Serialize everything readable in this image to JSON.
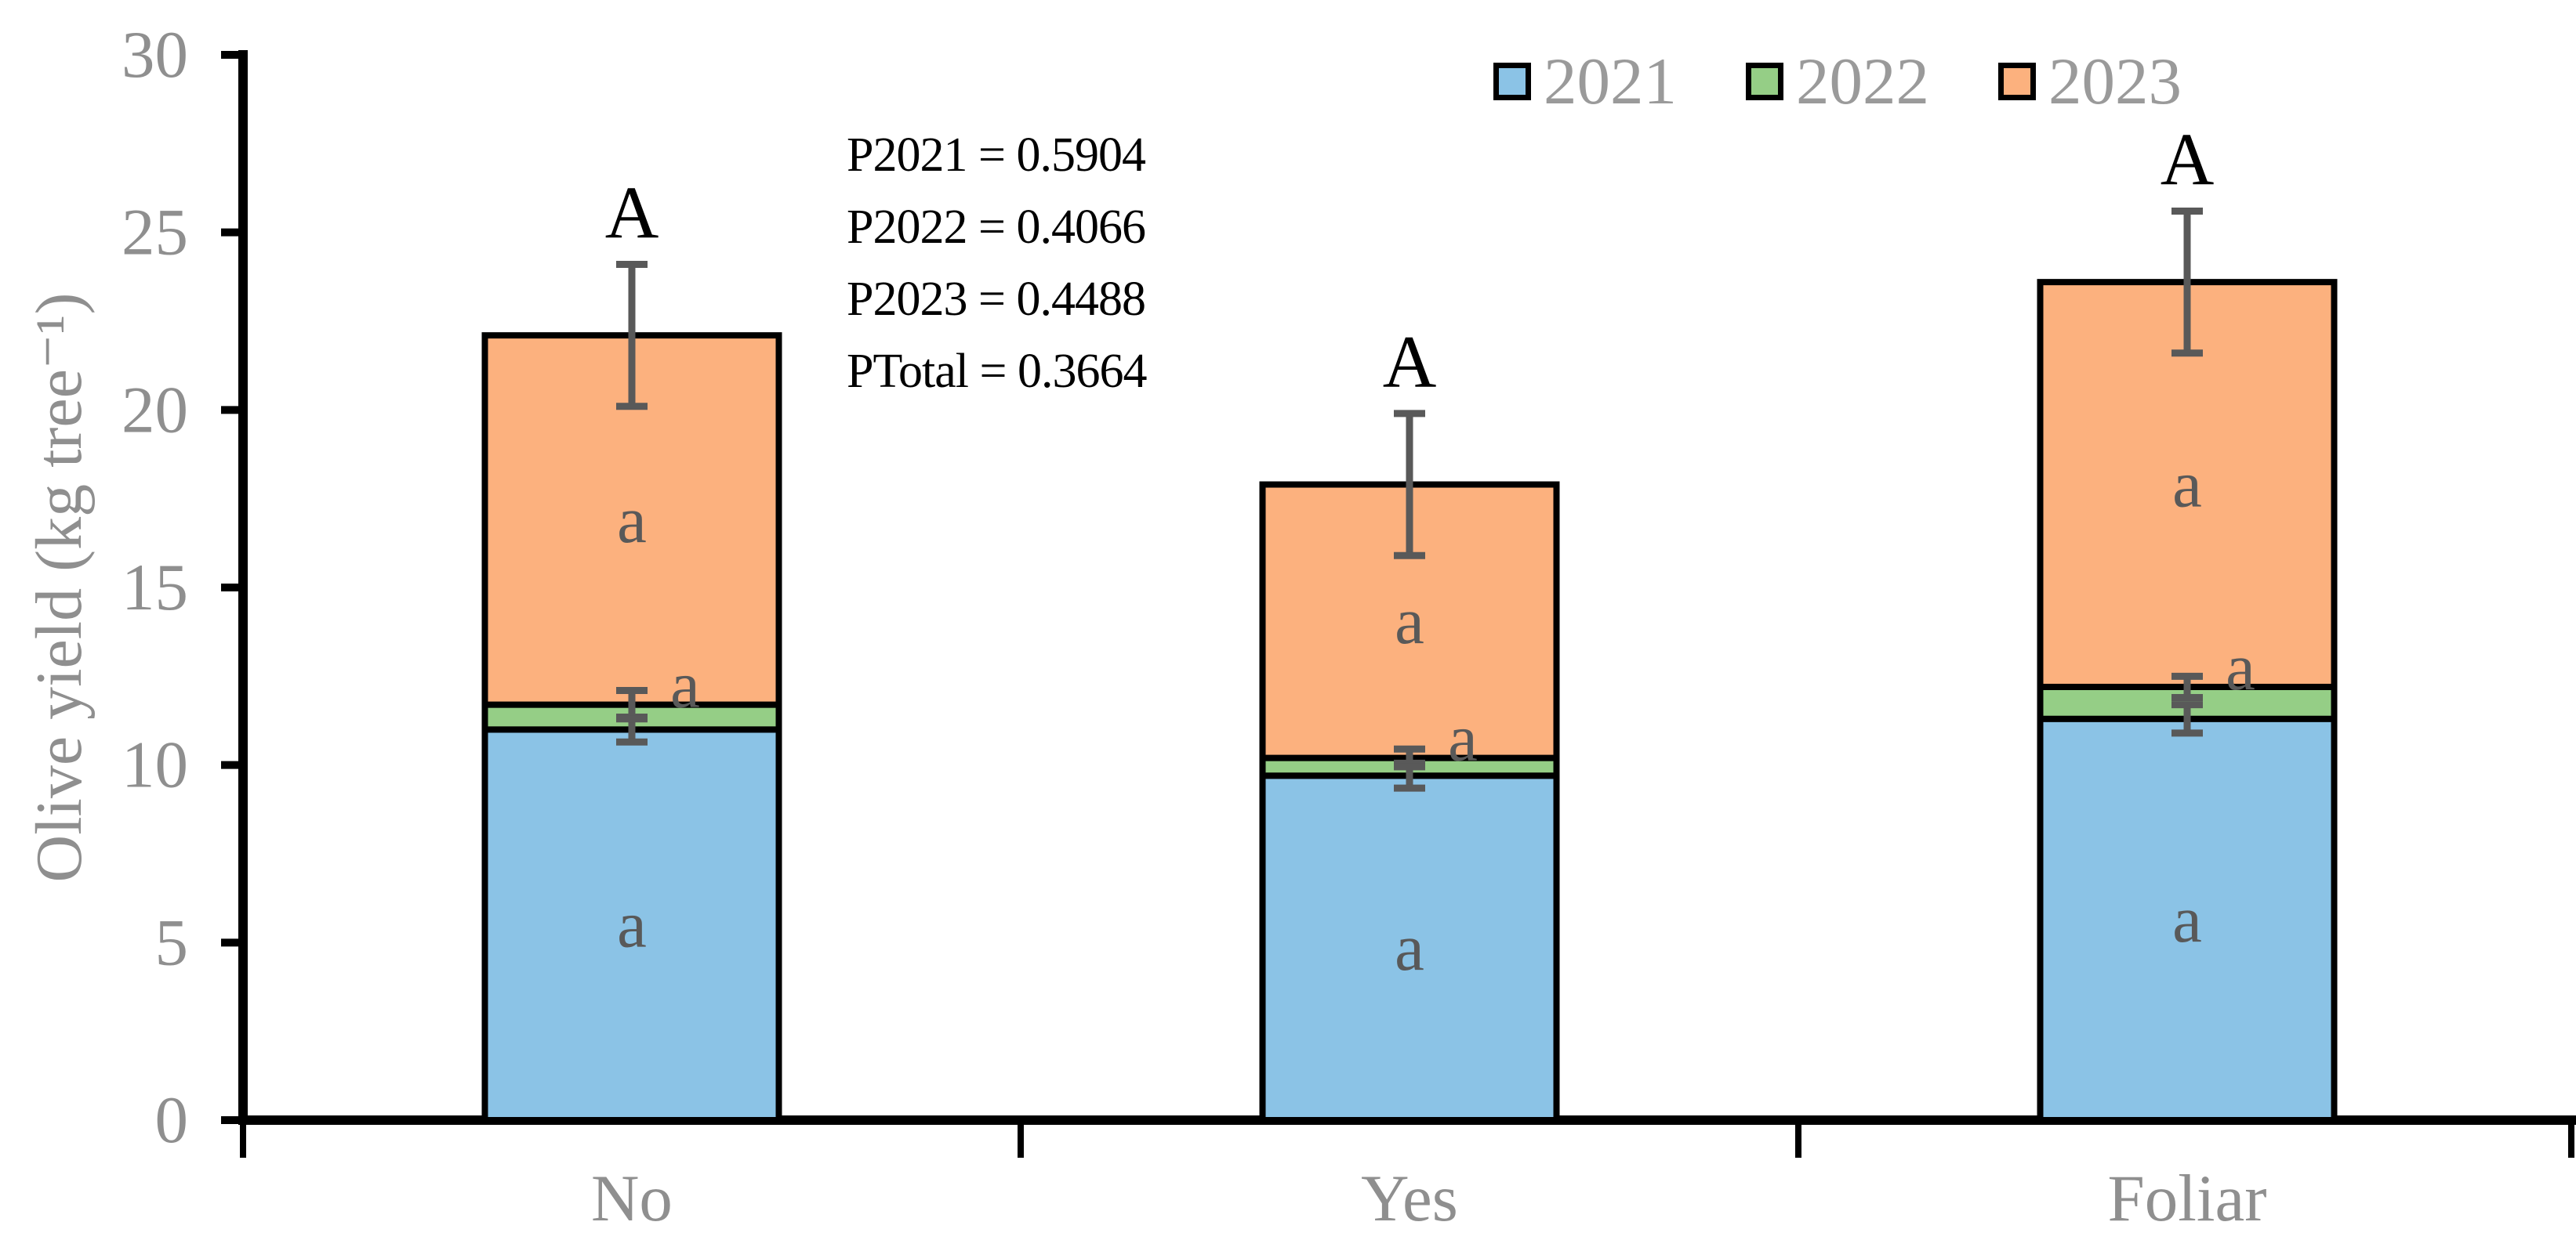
{
  "figure": {
    "description": "Stacked bar chart of olive yield per tree (2021-2023) for three fertilization treatments"
  },
  "axes": {
    "y_title": "Olive yield (kg tree⁻¹)",
    "x_categories": [
      "No",
      "Yes",
      "Foliar"
    ]
  },
  "legend": {
    "items": [
      {
        "label": "2021",
        "color": "#8BC3E6"
      },
      {
        "label": "2022",
        "color": "#95CE86"
      },
      {
        "label": "2023",
        "color": "#FCB17E"
      }
    ]
  },
  "annotations": {
    "pvalues": [
      "P2021 = 0.5904",
      "P2022 = 0.4066",
      "P2023 = 0.4488",
      "PTotal = 0.3664"
    ]
  },
  "chart_data": {
    "type": "bar",
    "stacked": true,
    "title": "",
    "categories": [
      "No",
      "Yes",
      "Foliar"
    ],
    "series": [
      {
        "name": "2021",
        "color": "#8BC3E6",
        "values": [
          11.0,
          9.7,
          11.3
        ],
        "top_errors": [
          0.35,
          0.35,
          0.4
        ],
        "segment_labels": [
          "a",
          "a",
          "a"
        ]
      },
      {
        "name": "2022",
        "color": "#95CE86",
        "values": [
          0.7,
          0.5,
          0.9
        ],
        "top_errors": [
          0.4,
          0.25,
          0.3
        ],
        "segment_labels": [
          "a",
          "a",
          "a"
        ]
      },
      {
        "name": "2023",
        "color": "#FCB17E",
        "values": [
          10.4,
          7.7,
          11.4
        ],
        "segment_labels": [
          "a",
          "a",
          "a"
        ]
      }
    ],
    "totals": [
      22.1,
      17.9,
      23.6
    ],
    "total_errors": [
      2.0,
      2.0,
      2.0
    ],
    "total_letters": [
      "A",
      "A",
      "A"
    ],
    "xlabel": "",
    "ylabel": "Olive yield (kg tree⁻¹)",
    "ylim": [
      0,
      30
    ],
    "yticks": [
      0,
      5,
      10,
      15,
      20,
      25,
      30
    ],
    "grid": false,
    "legend_position": "top-right",
    "colors": {
      "axis": "#000000",
      "bar_border": "#000000",
      "error_bar": "#595959",
      "letter_A": "#000000",
      "letter_a": "#595959",
      "tick_label": "#8f8f8f",
      "category_label": "#8f8f8f"
    }
  }
}
